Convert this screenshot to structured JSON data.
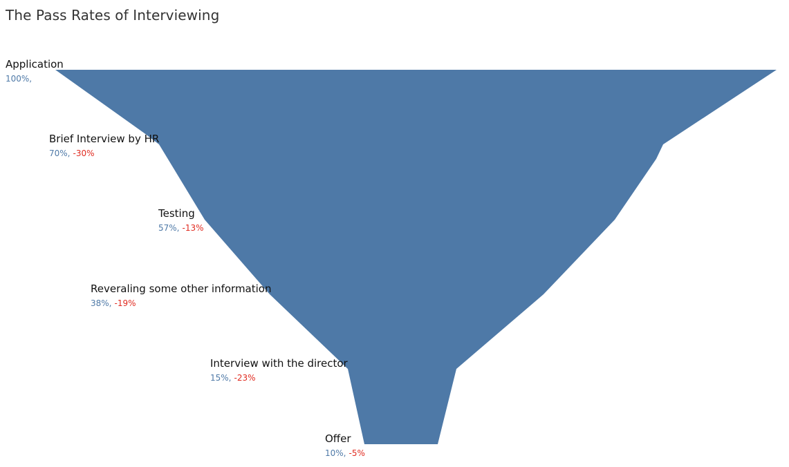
{
  "title": "The Pass Rates of Interviewing",
  "colors": {
    "funnel": "#4e79a7",
    "percent": "#4e79a7",
    "change": "#e02b20",
    "label": "#111111"
  },
  "chart_data": {
    "type": "area",
    "orientation": "vertical-funnel",
    "title": "The Pass Rates of Interviewing",
    "categories": [
      "Application",
      "Brief Interview by HR",
      "Testing",
      "Reveraling some other information",
      "Interview with the director",
      "Offer"
    ],
    "values": [
      100,
      70,
      57,
      38,
      15,
      10
    ],
    "changes": [
      null,
      -30,
      -13,
      -19,
      -23,
      -5
    ],
    "labels": [
      {
        "name": "Application",
        "pct": "100%,",
        "change": ""
      },
      {
        "name": "Brief Interview by HR",
        "pct": "70%,",
        "change": "-30%"
      },
      {
        "name": "Testing",
        "pct": "57%,",
        "change": "-13%"
      },
      {
        "name": "Reveraling some other information",
        "pct": "38%,",
        "change": "-19%"
      },
      {
        "name": "Interview with the director",
        "pct": "15%,",
        "change": "-23%"
      },
      {
        "name": "Offer",
        "pct": "10%,",
        "change": "-5%"
      }
    ]
  }
}
